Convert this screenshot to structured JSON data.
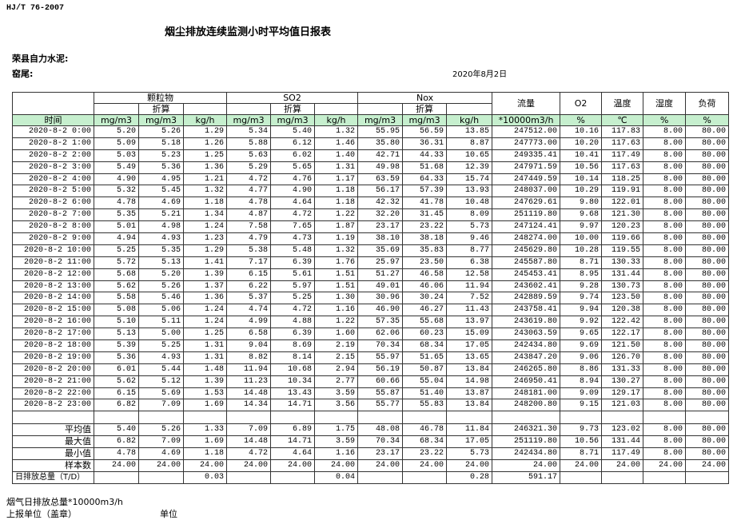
{
  "header": {
    "standard": "HJ/T  76-2007",
    "title": "烟尘排放连续监测小时平均值日报表",
    "company": "荣县自力水泥:",
    "kiln": "窑尾:",
    "date": "2020年8月2日"
  },
  "table": {
    "groups": [
      "颗粒物",
      "SO2",
      "Nox"
    ],
    "sub_labels": [
      "折算",
      "折算",
      "折算"
    ],
    "single_headers": [
      "流量",
      "O2",
      "温度",
      "湿度",
      "负荷"
    ],
    "units": [
      "时间",
      "mg/m3",
      "mg/m3",
      "kg/h",
      "mg/m3",
      "mg/m3",
      "kg/h",
      "mg/m3",
      "mg/m3",
      "kg/h",
      "*10000m3/h",
      "%",
      "℃",
      "%",
      "%"
    ],
    "rows": [
      [
        "2020-8-2 0:00",
        "5.20",
        "5.26",
        "1.29",
        "5.34",
        "5.40",
        "1.32",
        "55.95",
        "56.59",
        "13.85",
        "247512.00",
        "10.16",
        "117.83",
        "8.00",
        "80.00"
      ],
      [
        "2020-8-2 1:00",
        "5.09",
        "5.18",
        "1.26",
        "5.88",
        "6.12",
        "1.46",
        "35.80",
        "36.31",
        "8.87",
        "247773.00",
        "10.20",
        "117.63",
        "8.00",
        "80.00"
      ],
      [
        "2020-8-2 2:00",
        "5.03",
        "5.23",
        "1.25",
        "5.63",
        "6.02",
        "1.40",
        "42.71",
        "44.33",
        "10.65",
        "249335.41",
        "10.41",
        "117.49",
        "8.00",
        "80.00"
      ],
      [
        "2020-8-2 3:00",
        "5.49",
        "5.36",
        "1.36",
        "5.29",
        "5.65",
        "1.31",
        "49.98",
        "51.68",
        "12.39",
        "247971.59",
        "10.56",
        "117.63",
        "8.00",
        "80.00"
      ],
      [
        "2020-8-2 4:00",
        "4.90",
        "4.95",
        "1.21",
        "4.72",
        "4.76",
        "1.17",
        "63.59",
        "64.33",
        "15.74",
        "247449.59",
        "10.14",
        "118.25",
        "8.00",
        "80.00"
      ],
      [
        "2020-8-2 5:00",
        "5.32",
        "5.45",
        "1.32",
        "4.77",
        "4.90",
        "1.18",
        "56.17",
        "57.39",
        "13.93",
        "248037.00",
        "10.29",
        "119.91",
        "8.00",
        "80.00"
      ],
      [
        "2020-8-2 6:00",
        "4.78",
        "4.69",
        "1.18",
        "4.78",
        "4.64",
        "1.18",
        "42.32",
        "41.78",
        "10.48",
        "247629.61",
        "9.80",
        "122.01",
        "8.00",
        "80.00"
      ],
      [
        "2020-8-2 7:00",
        "5.35",
        "5.21",
        "1.34",
        "4.87",
        "4.72",
        "1.22",
        "32.20",
        "31.45",
        "8.09",
        "251119.80",
        "9.68",
        "121.30",
        "8.00",
        "80.00"
      ],
      [
        "2020-8-2 8:00",
        "5.01",
        "4.98",
        "1.24",
        "7.58",
        "7.65",
        "1.87",
        "23.17",
        "23.22",
        "5.73",
        "247124.41",
        "9.97",
        "120.23",
        "8.00",
        "80.00"
      ],
      [
        "2020-8-2 9:00",
        "4.94",
        "4.93",
        "1.23",
        "4.79",
        "4.73",
        "1.19",
        "38.10",
        "38.18",
        "9.46",
        "248274.00",
        "10.00",
        "119.66",
        "8.00",
        "80.00"
      ],
      [
        "2020-8-2 10:00",
        "5.25",
        "5.35",
        "1.29",
        "5.38",
        "5.48",
        "1.32",
        "35.69",
        "35.83",
        "8.77",
        "245629.80",
        "10.28",
        "119.55",
        "8.00",
        "80.00"
      ],
      [
        "2020-8-2 11:00",
        "5.72",
        "5.13",
        "1.41",
        "7.17",
        "6.39",
        "1.76",
        "25.97",
        "23.50",
        "6.38",
        "245587.80",
        "8.71",
        "130.33",
        "8.00",
        "80.00"
      ],
      [
        "2020-8-2 12:00",
        "5.68",
        "5.20",
        "1.39",
        "6.15",
        "5.61",
        "1.51",
        "51.27",
        "46.58",
        "12.58",
        "245453.41",
        "8.95",
        "131.44",
        "8.00",
        "80.00"
      ],
      [
        "2020-8-2 13:00",
        "5.62",
        "5.26",
        "1.37",
        "6.22",
        "5.97",
        "1.51",
        "49.01",
        "46.06",
        "11.94",
        "243602.41",
        "9.28",
        "130.73",
        "8.00",
        "80.00"
      ],
      [
        "2020-8-2 14:00",
        "5.58",
        "5.46",
        "1.36",
        "5.37",
        "5.25",
        "1.30",
        "30.96",
        "30.24",
        "7.52",
        "242889.59",
        "9.74",
        "123.50",
        "8.00",
        "80.00"
      ],
      [
        "2020-8-2 15:00",
        "5.08",
        "5.06",
        "1.24",
        "4.74",
        "4.72",
        "1.16",
        "46.90",
        "46.27",
        "11.43",
        "243758.41",
        "9.94",
        "120.38",
        "8.00",
        "80.00"
      ],
      [
        "2020-8-2 16:00",
        "5.10",
        "5.11",
        "1.24",
        "4.99",
        "4.88",
        "1.22",
        "57.35",
        "55.68",
        "13.97",
        "243619.80",
        "9.92",
        "122.42",
        "8.00",
        "80.00"
      ],
      [
        "2020-8-2 17:00",
        "5.13",
        "5.00",
        "1.25",
        "6.58",
        "6.39",
        "1.60",
        "62.06",
        "60.23",
        "15.09",
        "243063.59",
        "9.65",
        "122.17",
        "8.00",
        "80.00"
      ],
      [
        "2020-8-2 18:00",
        "5.39",
        "5.25",
        "1.31",
        "9.04",
        "8.69",
        "2.19",
        "70.34",
        "68.34",
        "17.05",
        "242434.80",
        "9.69",
        "121.50",
        "8.00",
        "80.00"
      ],
      [
        "2020-8-2 19:00",
        "5.36",
        "4.93",
        "1.31",
        "8.82",
        "8.14",
        "2.15",
        "55.97",
        "51.65",
        "13.65",
        "243847.20",
        "9.06",
        "126.70",
        "8.00",
        "80.00"
      ],
      [
        "2020-8-2 20:00",
        "6.01",
        "5.44",
        "1.48",
        "11.94",
        "10.68",
        "2.94",
        "56.19",
        "50.87",
        "13.84",
        "246265.80",
        "8.86",
        "131.33",
        "8.00",
        "80.00"
      ],
      [
        "2020-8-2 21:00",
        "5.62",
        "5.12",
        "1.39",
        "11.23",
        "10.34",
        "2.77",
        "60.66",
        "55.04",
        "14.98",
        "246950.41",
        "8.94",
        "130.27",
        "8.00",
        "80.00"
      ],
      [
        "2020-8-2 22:00",
        "6.15",
        "5.69",
        "1.53",
        "14.48",
        "13.43",
        "3.59",
        "55.87",
        "51.40",
        "13.87",
        "248181.00",
        "9.09",
        "129.17",
        "8.00",
        "80.00"
      ],
      [
        "2020-8-2 23:00",
        "6.82",
        "7.09",
        "1.69",
        "14.34",
        "14.71",
        "3.56",
        "55.77",
        "55.83",
        "13.84",
        "248200.80",
        "9.15",
        "121.03",
        "8.00",
        "80.00"
      ]
    ],
    "summary": [
      [
        "平均值",
        "5.40",
        "5.26",
        "1.33",
        "7.09",
        "6.89",
        "1.75",
        "48.08",
        "46.78",
        "11.84",
        "246321.30",
        "9.73",
        "123.02",
        "8.00",
        "80.00"
      ],
      [
        "最大值",
        "6.82",
        "7.09",
        "1.69",
        "14.48",
        "14.71",
        "3.59",
        "70.34",
        "68.34",
        "17.05",
        "251119.80",
        "10.56",
        "131.44",
        "8.00",
        "80.00"
      ],
      [
        "最小值",
        "4.78",
        "4.69",
        "1.18",
        "4.72",
        "4.64",
        "1.16",
        "23.17",
        "23.22",
        "5.73",
        "242434.80",
        "8.71",
        "117.49",
        "8.00",
        "80.00"
      ],
      [
        "样本数",
        "24.00",
        "24.00",
        "24.00",
        "24.00",
        "24.00",
        "24.00",
        "24.00",
        "24.00",
        "24.00",
        "24.00",
        "24.00",
        "24.00",
        "24.00",
        "24.00"
      ],
      [
        "日排放总量（T/D）",
        null,
        null,
        "0.03",
        null,
        null,
        "0.04",
        null,
        null,
        "0.28",
        "591.17",
        null,
        null,
        null,
        null
      ]
    ]
  },
  "footer": {
    "flue_gas_total": "烟气日排放总量*10000m3/h",
    "reporter": "上报单位（盖章）",
    "unit": "单位"
  }
}
